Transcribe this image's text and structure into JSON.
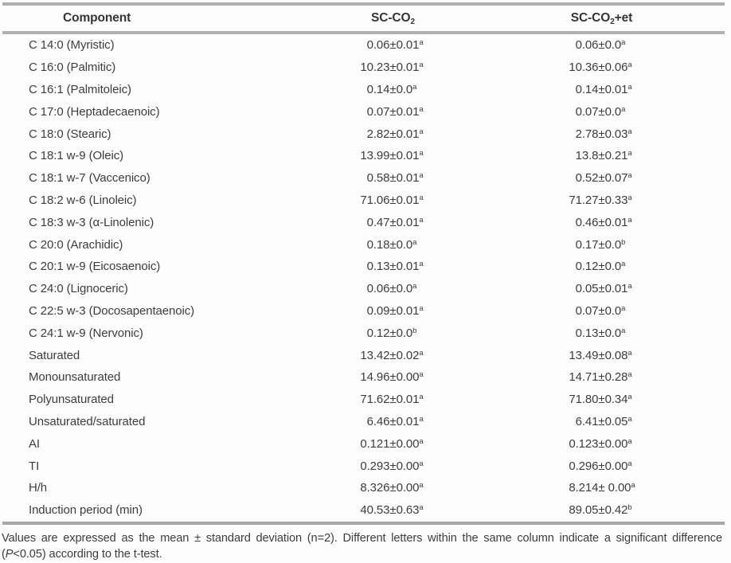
{
  "table": {
    "plus_minus": "±",
    "headers": {
      "component": "Component",
      "col2": {
        "base": "SC-CO",
        "sub": "2",
        "suffix": ""
      },
      "col3": {
        "base": "SC-CO",
        "sub": "2",
        "suffix": "+et"
      }
    },
    "rows": [
      {
        "component": "C 14:0 (Myristic)",
        "sc_co2": {
          "mean": "0.06",
          "sd": "0.01",
          "sup": "a"
        },
        "sc_co2_et": {
          "mean": "0.06",
          "sd": "0.0",
          "sup": "a"
        }
      },
      {
        "component": "C 16:0 (Palmitic)",
        "sc_co2": {
          "mean": "10.23",
          "sd": "0.01",
          "sup": "a"
        },
        "sc_co2_et": {
          "mean": "10.36",
          "sd": "0.06",
          "sup": "a"
        }
      },
      {
        "component": "C 16:1 (Palmitoleic)",
        "sc_co2": {
          "mean": "0.14",
          "sd": "0.0",
          "sup": "a"
        },
        "sc_co2_et": {
          "mean": "0.14",
          "sd": "0.01",
          "sup": "a"
        }
      },
      {
        "component": "C 17:0 (Heptadecaenoic)",
        "sc_co2": {
          "mean": "0.07",
          "sd": "0.01",
          "sup": "a"
        },
        "sc_co2_et": {
          "mean": "0.07",
          "sd": "0.0",
          "sup": "a"
        }
      },
      {
        "component": "C 18:0 (Stearic)",
        "sc_co2": {
          "mean": "2.82",
          "sd": "0.01",
          "sup": "a"
        },
        "sc_co2_et": {
          "mean": "2.78",
          "sd": "0.03",
          "sup": "a"
        }
      },
      {
        "component": "C 18:1 w-9 (Oleic)",
        "sc_co2": {
          "mean": "13.99",
          "sd": "0.01",
          "sup": "a"
        },
        "sc_co2_et": {
          "mean": "13.8",
          "sd": "0.21",
          "sup": "a"
        }
      },
      {
        "component": "C 18:1 w-7 (Vaccenico)",
        "sc_co2": {
          "mean": "0.58",
          "sd": "0.01",
          "sup": "a"
        },
        "sc_co2_et": {
          "mean": "0.52",
          "sd": "0.07",
          "sup": "a"
        }
      },
      {
        "component": "C 18:2 w-6 (Linoleic)",
        "sc_co2": {
          "mean": "71.06",
          "sd": "0.01",
          "sup": "a"
        },
        "sc_co2_et": {
          "mean": "71.27",
          "sd": "0.33",
          "sup": "a"
        }
      },
      {
        "component": "C 18:3 w-3 (α-Linolenic)",
        "sc_co2": {
          "mean": "0.47",
          "sd": "0.01",
          "sup": "a"
        },
        "sc_co2_et": {
          "mean": "0.46",
          "sd": "0.01",
          "sup": "a"
        }
      },
      {
        "component": "C 20:0 (Arachidic)",
        "sc_co2": {
          "mean": "0.18",
          "sd": "0.0",
          "sup": "a"
        },
        "sc_co2_et": {
          "mean": "0.17",
          "sd": "0.0",
          "sup": "b"
        }
      },
      {
        "component": "C 20:1 w-9 (Eicosaenoic)",
        "sc_co2": {
          "mean": "0.13",
          "sd": "0.01",
          "sup": "a"
        },
        "sc_co2_et": {
          "mean": "0.12",
          "sd": "0.0",
          "sup": "a"
        }
      },
      {
        "component": "C 24:0 (Lignoceric)",
        "sc_co2": {
          "mean": "0.06",
          "sd": "0.0",
          "sup": "a"
        },
        "sc_co2_et": {
          "mean": "0.05",
          "sd": "0.01",
          "sup": "a"
        }
      },
      {
        "component": "C 22:5 w-3 (Docosapentaenoic)",
        "sc_co2": {
          "mean": "0.09",
          "sd": "0.01",
          "sup": "a"
        },
        "sc_co2_et": {
          "mean": "0.07",
          "sd": "0.0",
          "sup": "a"
        }
      },
      {
        "component": "C 24:1 w-9 (Nervonic)",
        "sc_co2": {
          "mean": "0.12",
          "sd": "0.0",
          "sup": "b"
        },
        "sc_co2_et": {
          "mean": "0.13",
          "sd": "0.0",
          "sup": "a"
        }
      },
      {
        "component": "Saturated",
        "sc_co2": {
          "mean": "13.42",
          "sd": "0.02",
          "sup": "a"
        },
        "sc_co2_et": {
          "mean": "13.49",
          "sd": "0.08",
          "sup": "a"
        }
      },
      {
        "component": "Monounsaturated",
        "sc_co2": {
          "mean": "14.96",
          "sd": "0.00",
          "sup": "a"
        },
        "sc_co2_et": {
          "mean": "14.71",
          "sd": "0.28",
          "sup": "a"
        }
      },
      {
        "component": "Polyunsaturated",
        "sc_co2": {
          "mean": "71.62",
          "sd": "0.01",
          "sup": "a"
        },
        "sc_co2_et": {
          "mean": "71.80",
          "sd": "0.34",
          "sup": "a"
        }
      },
      {
        "component": "Unsaturated/saturated",
        "sc_co2": {
          "mean": "6.46",
          "sd": "0.01",
          "sup": "a"
        },
        "sc_co2_et": {
          "mean": "6.41",
          "sd": "0.05",
          "sup": "a"
        }
      },
      {
        "component": "AI",
        "sc_co2": {
          "mean": "0.121",
          "sd": "0.00",
          "sup": "a"
        },
        "sc_co2_et": {
          "mean": "0.123",
          "sd": "0.00",
          "sup": "a"
        }
      },
      {
        "component": "TI",
        "sc_co2": {
          "mean": "0.293",
          "sd": "0.00",
          "sup": "a"
        },
        "sc_co2_et": {
          "mean": "0.296",
          "sd": "0.00",
          "sup": "a"
        }
      },
      {
        "component": "H/h",
        "sc_co2": {
          "mean": "8.326",
          "sd": "0.00",
          "sup": "a"
        },
        "sc_co2_et": {
          "mean": "8.214",
          "sd": " 0.00",
          "sup": "a"
        }
      },
      {
        "component": "Induction period (min)",
        "sc_co2": {
          "mean": "40.53",
          "sd": "0.63",
          "sup": "a"
        },
        "sc_co2_et": {
          "mean": "89.05",
          "sd": "0.42",
          "sup": "b"
        }
      }
    ]
  },
  "footnote": {
    "part1": "Values are expressed as the mean ± standard deviation (n=2). Different letters within the same column indicate a significant difference (",
    "italic": "P",
    "part2": "<0.05) according to the t-test."
  },
  "colors": {
    "rule_gray": "#aeaeae",
    "text": "#3d3d3d",
    "background": "#ffffff"
  }
}
